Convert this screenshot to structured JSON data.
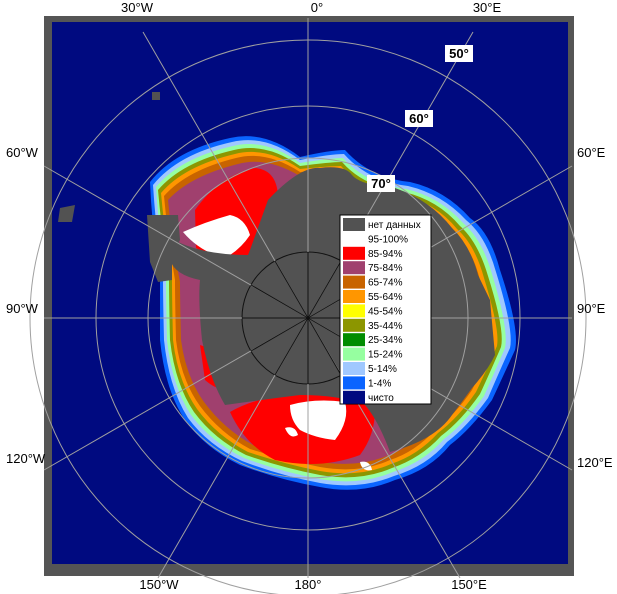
{
  "colors": {
    "ocean": "#000a80",
    "land": "#525252",
    "frame": "#555555",
    "grid": "#a0a0a0",
    "open_water_band": "#1e6ef0"
  },
  "longitude_labels": {
    "top": [
      "30°W",
      "0°",
      "30°E"
    ],
    "left": [
      "60°W",
      "90°W",
      "120°W"
    ],
    "right": [
      "60°E",
      "90°E",
      "120°E"
    ],
    "bottom": [
      "150°W",
      "180°",
      "150°E"
    ]
  },
  "latitude_labels": [
    "50°",
    "60°",
    "70°"
  ],
  "legend": {
    "items": [
      {
        "label": "нет данных",
        "color": "#525252"
      },
      {
        "label": "95-100%",
        "color": "#ffffff"
      },
      {
        "label": "85-94%",
        "color": "#ff0000"
      },
      {
        "label": "75-84%",
        "color": "#a0406e"
      },
      {
        "label": "65-74%",
        "color": "#c86400"
      },
      {
        "label": "55-64%",
        "color": "#ff9600"
      },
      {
        "label": "45-54%",
        "color": "#ffff00"
      },
      {
        "label": "35-44%",
        "color": "#8c9600"
      },
      {
        "label": "25-34%",
        "color": "#008c00"
      },
      {
        "label": "15-24%",
        "color": "#96ffa0"
      },
      {
        "label": "5-14%",
        "color": "#a0c8ff"
      },
      {
        "label": "1-4%",
        "color": "#0a64ff"
      },
      {
        "label": "чисто",
        "color": "#000a80"
      }
    ]
  }
}
